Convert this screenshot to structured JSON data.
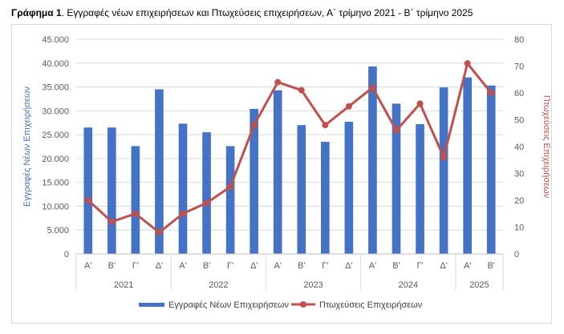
{
  "title_prefix": "Γράφημα 1",
  "title_text": ". Εγγραφές νέων επιχειρήσεων και Πτωχεύσεις επιχειρήσεων, Α΄ τρίμηνο 2021 - Β΄ τρίμηνο 2025",
  "chart_data": {
    "type": "bar",
    "categories": [
      "Α'",
      "Β'",
      "Γ'",
      "Δ'",
      "Α'",
      "Β'",
      "Γ'",
      "Δ'",
      "Α'",
      "Β'",
      "Γ'",
      "Δ'",
      "Α'",
      "Β'",
      "Γ'",
      "Δ'",
      "Α'",
      "Β'"
    ],
    "groups": [
      {
        "label": "2021",
        "count": 4
      },
      {
        "label": "2022",
        "count": 4
      },
      {
        "label": "2023",
        "count": 4
      },
      {
        "label": "2024",
        "count": 4
      },
      {
        "label": "2025",
        "count": 2
      }
    ],
    "series": [
      {
        "name": "Εγγραφές Νέων Επιχειρήσεων",
        "type": "bar",
        "axis": "left",
        "color": "#4472c4",
        "values": [
          26500,
          26500,
          22600,
          34500,
          27300,
          25500,
          22600,
          30400,
          34300,
          27000,
          23500,
          27700,
          39300,
          31500,
          27200,
          34900,
          37000,
          35300
        ]
      },
      {
        "name": "Πτωχεύσεις Επιχειρήσεων",
        "type": "line",
        "axis": "right",
        "color": "#c0504d",
        "values": [
          20,
          12,
          15,
          8,
          15,
          19,
          25,
          48,
          64,
          61,
          48,
          55,
          62,
          46,
          56,
          36,
          71,
          60
        ]
      }
    ],
    "ylabel": "Εγγραφές Νέων Επιχειρήσεων",
    "y2label": "Πτωχεύσεις Επιχειρήσεων",
    "ylim": [
      0,
      45000
    ],
    "y2lim": [
      0,
      80
    ],
    "yticks": [
      "0",
      "5.000",
      "10.000",
      "15.000",
      "20.000",
      "25.000",
      "30.000",
      "35.000",
      "40.000",
      "45.000"
    ],
    "y2ticks": [
      "0",
      "10",
      "20",
      "30",
      "40",
      "50",
      "60",
      "70",
      "80"
    ],
    "grid": true,
    "legend_position": "bottom"
  }
}
